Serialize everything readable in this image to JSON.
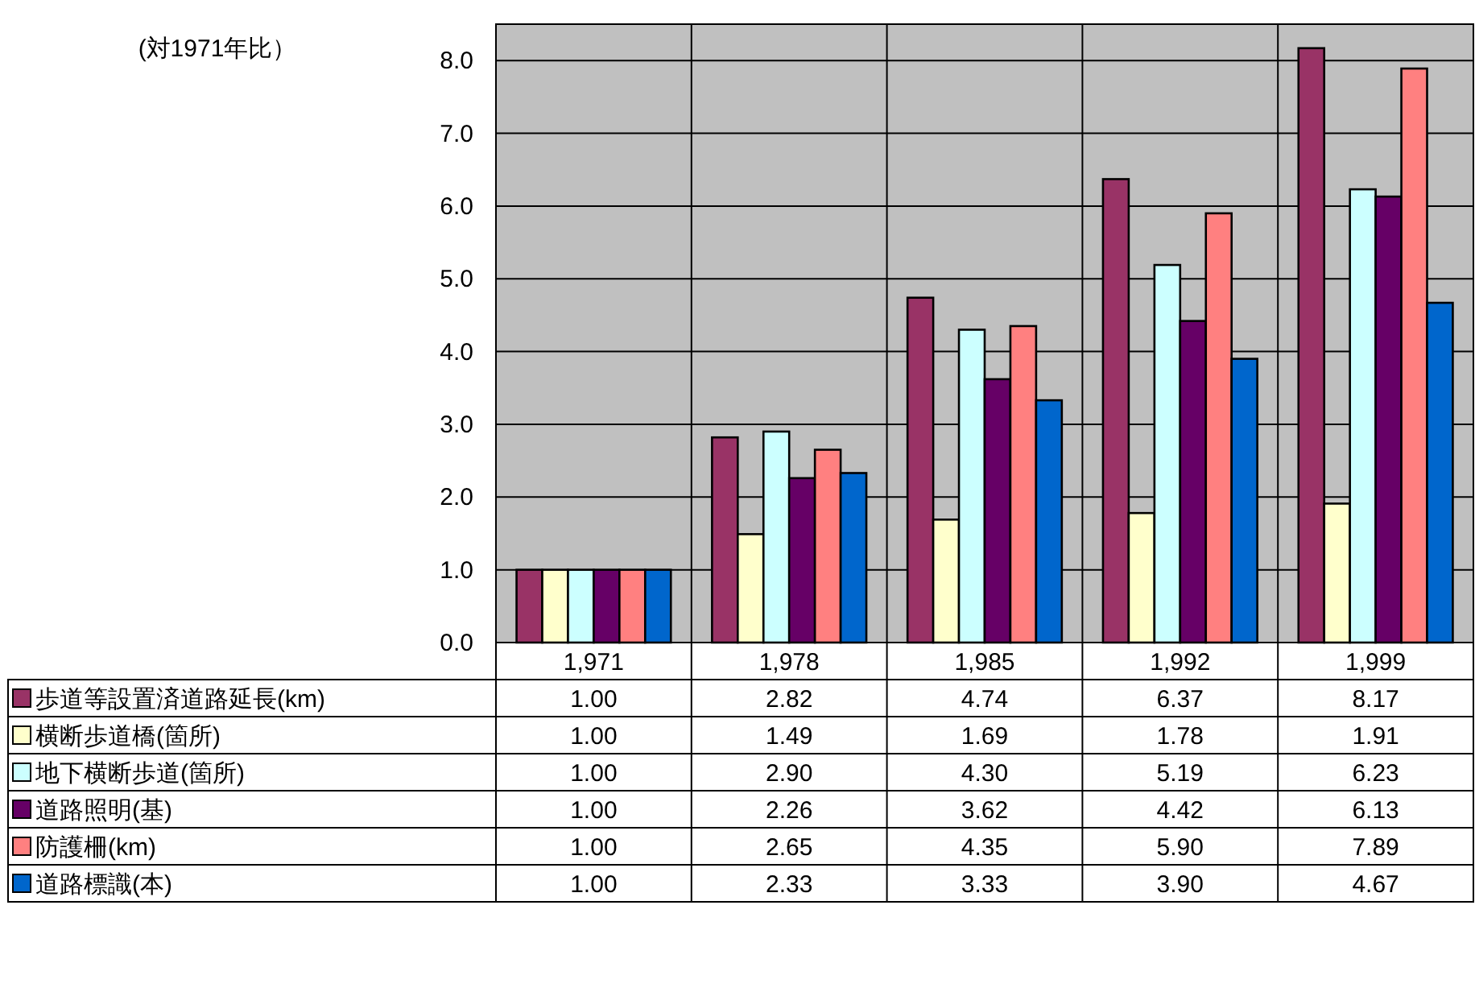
{
  "chart_data": {
    "type": "bar",
    "annotations": [
      "(対1971年比）"
    ],
    "categories": [
      "1,971",
      "1,978",
      "1,985",
      "1,992",
      "1,999"
    ],
    "series": [
      {
        "name": "歩道等設置済道路延長(km)",
        "color": "#993366",
        "values": [
          1.0,
          2.82,
          4.74,
          6.37,
          8.17
        ],
        "value_labels": [
          "1.00",
          "2.82",
          "4.74",
          "6.37",
          "8.17"
        ]
      },
      {
        "name": "横断歩道橋(箇所)",
        "color": "#ffffcc",
        "values": [
          1.0,
          1.49,
          1.69,
          1.78,
          1.91
        ],
        "value_labels": [
          "1.00",
          "1.49",
          "1.69",
          "1.78",
          "1.91"
        ]
      },
      {
        "name": "地下横断歩道(箇所)",
        "color": "#ccffff",
        "values": [
          1.0,
          2.9,
          4.3,
          5.19,
          6.23
        ],
        "value_labels": [
          "1.00",
          "2.90",
          "4.30",
          "5.19",
          "6.23"
        ]
      },
      {
        "name": "道路照明(基)",
        "color": "#660066",
        "values": [
          1.0,
          2.26,
          3.62,
          4.42,
          6.13
        ],
        "value_labels": [
          "1.00",
          "2.26",
          "3.62",
          "4.42",
          "6.13"
        ]
      },
      {
        "name": "防護柵(km)",
        "color": "#ff8080",
        "values": [
          1.0,
          2.65,
          4.35,
          5.9,
          7.89
        ],
        "value_labels": [
          "1.00",
          "2.65",
          "4.35",
          "5.90",
          "7.89"
        ]
      },
      {
        "name": "道路標識(本)",
        "color": "#0066cc",
        "values": [
          1.0,
          2.33,
          3.33,
          3.9,
          4.67
        ],
        "value_labels": [
          "1.00",
          "2.33",
          "3.33",
          "3.90",
          "4.67"
        ]
      }
    ],
    "ylim": [
      0,
      8.5
    ],
    "yticks": [
      {
        "value": 0,
        "label": "0.0"
      },
      {
        "value": 1,
        "label": "1.0"
      },
      {
        "value": 2,
        "label": "2.0"
      },
      {
        "value": 3,
        "label": "3.0"
      },
      {
        "value": 4,
        "label": "4.0"
      },
      {
        "value": 5,
        "label": "5.0"
      },
      {
        "value": 6,
        "label": "6.0"
      },
      {
        "value": 7,
        "label": "7.0"
      },
      {
        "value": 8,
        "label": "8.0"
      }
    ],
    "grid": "y",
    "legend": "left"
  }
}
